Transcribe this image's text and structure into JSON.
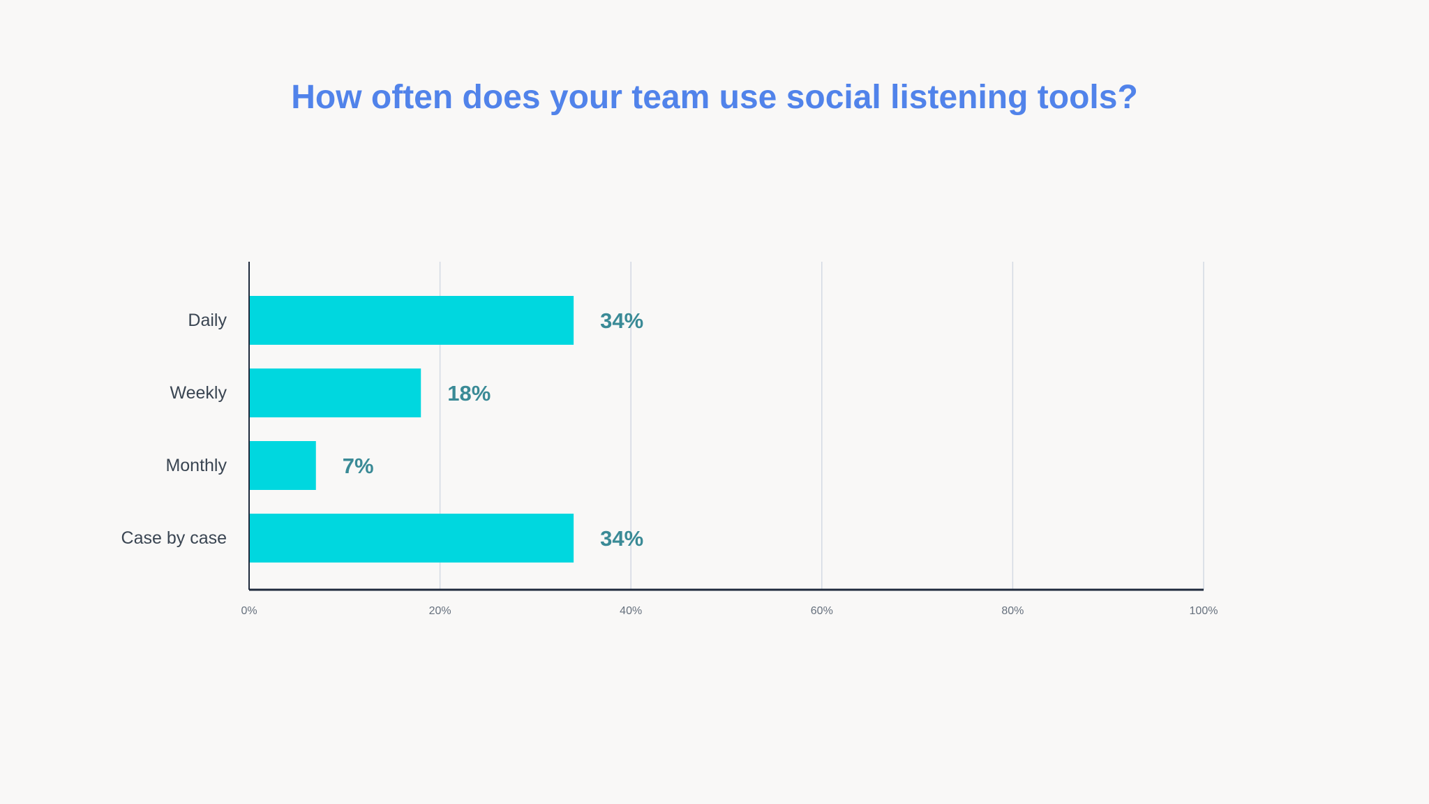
{
  "chart_data": {
    "type": "bar",
    "orientation": "horizontal",
    "title": "How often does your team use social listening tools?",
    "categories": [
      "Daily",
      "Weekly",
      "Monthly",
      "Case by case"
    ],
    "values": [
      34,
      18,
      7,
      34
    ],
    "value_labels": [
      "34%",
      "18%",
      "7%",
      "34%"
    ],
    "xlim": [
      0,
      100
    ],
    "xticks": [
      0,
      20,
      40,
      60,
      80,
      100
    ],
    "xtick_labels": [
      "0%",
      "20%",
      "40%",
      "60%",
      "80%",
      "100%"
    ],
    "xlabel": "",
    "ylabel": "",
    "grid": true,
    "colors": {
      "bar": "#00d7df",
      "title": "#5183ea",
      "value_label": "#3a8a96",
      "gridline": "#d3d9e3",
      "axis": "#1f2a3c"
    }
  }
}
